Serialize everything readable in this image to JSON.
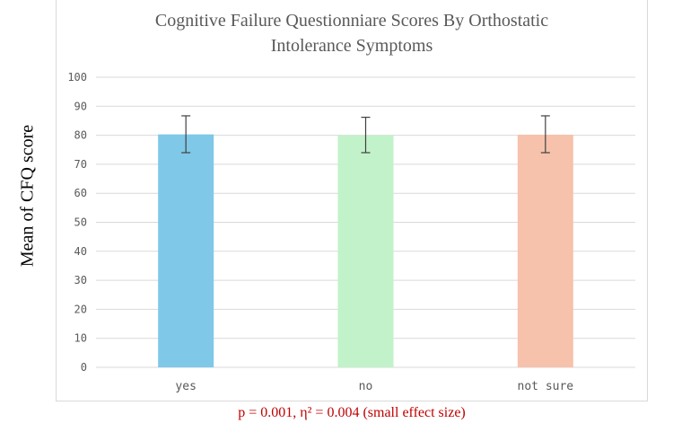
{
  "chart_data": {
    "type": "bar",
    "title_lines": [
      "Cognitive Failure Questionniare Scores By Orthostatic",
      "Intolerance Symptoms"
    ],
    "ylabel": "Mean of CFQ score",
    "xlabel": "",
    "ylim": [
      0,
      100
    ],
    "yticks": [
      "0",
      "10",
      "20",
      "30",
      "40",
      "50",
      "60",
      "70",
      "80",
      "90",
      "100"
    ],
    "grid": true,
    "categories": [
      "yes",
      "no",
      "not sure"
    ],
    "values": [
      80.3,
      80.0,
      80.2
    ],
    "error_low": [
      74.0,
      74.0,
      74.0
    ],
    "error_high": [
      86.7,
      86.2,
      86.7
    ],
    "bar_colors": [
      "#7fc8e8",
      "#c2f2c9",
      "#f6c2ab"
    ],
    "annotation": "p = 0.001, η² = 0.004 (small effect size)"
  }
}
